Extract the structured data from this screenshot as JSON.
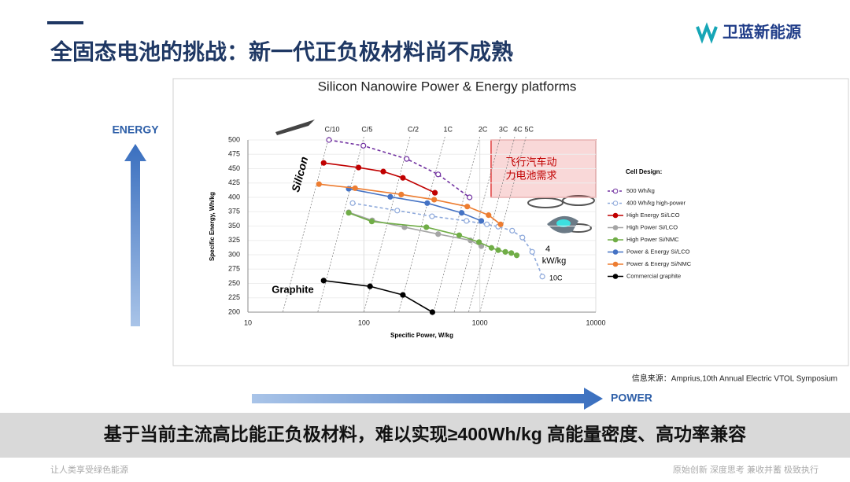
{
  "slide": {
    "title": "全固态电池的挑战：新一代正负极材料尚不成熟",
    "logo": "卫蓝新能源",
    "energy_label": "ENERGY",
    "power_label": "POWER",
    "source": "信息来源：Amprius,10th Annual Electric VTOL Symposium",
    "banner": "基于当前主流高比能正负极材料，难以实现≥400Wh/kg 高能量密度、高功率兼容",
    "footer_left": "让人类享受绿色能源",
    "footer_right": "原始创新 深度思考 兼收并蓄 极致执行"
  },
  "chart_data": {
    "type": "line",
    "title": "Silicon Nanowire Power & Energy platforms",
    "x_label": "Specific Power, W/kg",
    "y_label": "Specific Energy, Wh/kg",
    "xscale": "log",
    "xlim": [
      10,
      10000
    ],
    "xticks": [
      10,
      100,
      1000,
      10000
    ],
    "ylim": [
      200,
      500
    ],
    "yticks": [
      200,
      225,
      250,
      275,
      300,
      325,
      350,
      375,
      400,
      425,
      450,
      475,
      500
    ],
    "grid": true,
    "legend_title": "Cell Design:",
    "legend": "right",
    "annotations": [
      "Silicon",
      "Graphite",
      "4",
      "kW/kg",
      "10C"
    ],
    "c_rates": [
      {
        "label": "C/10",
        "value": 0.1
      },
      {
        "label": "C/5",
        "value": 0.2
      },
      {
        "label": "C/2",
        "value": 0.5
      },
      {
        "label": "1C",
        "value": 1
      },
      {
        "label": "2C",
        "value": 2
      },
      {
        "label": "3C",
        "value": 3
      },
      {
        "label": "4C",
        "value": 4
      },
      {
        "label": "5C",
        "value": 5
      }
    ],
    "target_region": {
      "label_lines": [
        "飞行汽车动",
        "力电池需求"
      ],
      "color": "#e03c3c",
      "xlim": [
        1250,
        10000
      ],
      "ylim": [
        400,
        500
      ]
    },
    "series": [
      {
        "name": "500 Wh/kg",
        "color": "#7030a0",
        "dashed": true,
        "marker": "hollow",
        "x": [
          50,
          99,
          234,
          437,
          816
        ],
        "values": [
          500,
          490,
          467,
          440,
          400
        ]
      },
      {
        "name": "400 Wh/kg high-power",
        "color": "#8ea9db",
        "dashed": true,
        "marker": "hollow",
        "x": [
          80,
          194,
          387,
          768,
          1150,
          1440,
          1900,
          2330,
          2830,
          3460
        ],
        "values": [
          390,
          377,
          367,
          359,
          353,
          349,
          342,
          330,
          305,
          262
        ]
      },
      {
        "name": "High Energy Si/LCO",
        "color": "#c00000",
        "dashed": false,
        "marker": "filled",
        "x": [
          45,
          90,
          147,
          217,
          410
        ],
        "values": [
          460,
          452,
          445,
          434,
          408
        ]
      },
      {
        "name": "High Power Si/LCO",
        "color": "#a5a5a5",
        "dashed": false,
        "marker": "filled",
        "x": [
          74,
          118,
          224,
          437,
          830,
          1030
        ],
        "values": [
          374,
          360,
          348,
          336,
          325,
          315
        ]
      },
      {
        "name": "High Power Si/NMC",
        "color": "#70ad47",
        "dashed": false,
        "marker": "filled",
        "x": [
          74,
          117,
          346,
          664,
          984,
          1260,
          1440,
          1660,
          1870,
          2080
        ],
        "values": [
          373,
          358,
          348,
          334,
          322,
          312,
          308,
          305,
          303,
          299
        ]
      },
      {
        "name": "Power & Energy Si/LCO",
        "color": "#4472c4",
        "dashed": false,
        "marker": "filled",
        "x": [
          74,
          169,
          352,
          697,
          1030
        ],
        "values": [
          415,
          401,
          390,
          373,
          359
        ]
      },
      {
        "name": "Power & Energy Si/NMC",
        "color": "#ed7d31",
        "dashed": false,
        "marker": "filled",
        "x": [
          41,
          84,
          210,
          404,
          779,
          1190,
          1510
        ],
        "values": [
          423,
          416,
          405,
          396,
          384,
          369,
          353
        ]
      },
      {
        "name": "Commercial graphite",
        "color": "#000000",
        "dashed": false,
        "marker": "filled",
        "x": [
          45,
          113,
          217,
          390
        ],
        "values": [
          255,
          245,
          230,
          200
        ]
      }
    ]
  }
}
